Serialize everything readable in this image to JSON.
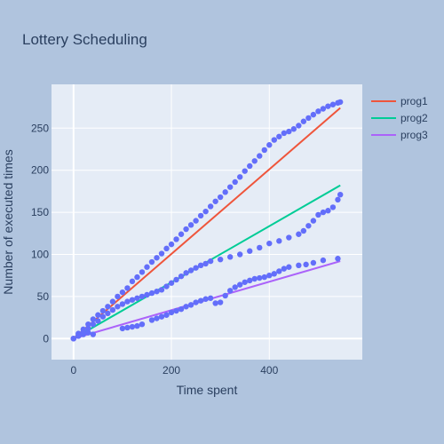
{
  "chart_data": {
    "type": "line",
    "title": "Lottery Scheduling",
    "xlabel": "Time spent",
    "ylabel": "Number of executed times",
    "xlim": [
      -45,
      590
    ],
    "ylim": [
      -25,
      302
    ],
    "x_ticks": [
      0,
      200,
      400
    ],
    "y_ticks": [
      0,
      50,
      100,
      150,
      200,
      250
    ],
    "grid": true,
    "legend_position": "right",
    "colors": {
      "background": "#b0c4de",
      "plot_bg": "#e5ecf6",
      "marker": "#636efa"
    },
    "series": [
      {
        "name": "prog1",
        "color": "#EF553B",
        "x": [
          0,
          545
        ],
        "y": [
          0,
          274
        ]
      },
      {
        "name": "prog2",
        "color": "#00CC96",
        "x": [
          0,
          545
        ],
        "y": [
          0,
          182
        ]
      },
      {
        "name": "prog3",
        "color": "#AB63FA",
        "x": [
          0,
          545
        ],
        "y": [
          0,
          92
        ]
      }
    ],
    "scatter": {
      "name": "observed",
      "color": "#636efa",
      "groups": [
        {
          "x": [
            0,
            10,
            20,
            30,
            40,
            50,
            60,
            70,
            80,
            90,
            100,
            110,
            120,
            130,
            140,
            150,
            160,
            170,
            180,
            190,
            200,
            210,
            220,
            230,
            240,
            250,
            260,
            270,
            280,
            290,
            300,
            310,
            320,
            330,
            340,
            350,
            360,
            370,
            380,
            390,
            400,
            410,
            420,
            430,
            440,
            450,
            460,
            470,
            480,
            490,
            500,
            510,
            520,
            530,
            540,
            545
          ],
          "y": [
            0,
            6,
            11,
            17,
            23,
            28,
            33,
            38,
            44,
            50,
            55,
            60,
            68,
            73,
            79,
            85,
            91,
            96,
            101,
            107,
            112,
            118,
            124,
            130,
            135,
            140,
            146,
            151,
            157,
            163,
            168,
            174,
            180,
            186,
            192,
            199,
            205,
            211,
            217,
            224,
            230,
            236,
            240,
            244,
            246,
            249,
            253,
            258,
            262,
            266,
            270,
            273,
            276,
            278,
            280,
            281
          ]
        },
        {
          "x": [
            0,
            10,
            20,
            30,
            40,
            50,
            60,
            70,
            80,
            90,
            100,
            110,
            120,
            130,
            140,
            150,
            160,
            170,
            180,
            190,
            200,
            210,
            220,
            230,
            240,
            250,
            260,
            270,
            280,
            300,
            320,
            340,
            360,
            380,
            400,
            420,
            440,
            460,
            470,
            480,
            490,
            500,
            510,
            520,
            530,
            540,
            545
          ],
          "y": [
            0,
            4,
            8,
            12,
            17,
            21,
            26,
            30,
            34,
            38,
            41,
            44,
            46,
            48,
            50,
            52,
            54,
            56,
            58,
            62,
            66,
            70,
            74,
            78,
            81,
            84,
            87,
            89,
            92,
            94,
            97,
            100,
            104,
            108,
            113,
            116,
            120,
            124,
            128,
            134,
            140,
            147,
            150,
            152,
            156,
            165,
            171
          ]
        },
        {
          "x": [
            0,
            10,
            20,
            30,
            40,
            100,
            110,
            120,
            130,
            140,
            160,
            170,
            180,
            190,
            200,
            210,
            220,
            230,
            240,
            250,
            260,
            270,
            280,
            290,
            300,
            310,
            320,
            330,
            340,
            350,
            360,
            370,
            380,
            390,
            400,
            410,
            420,
            430,
            440,
            460,
            475,
            490,
            510,
            540
          ],
          "y": [
            0,
            3,
            5,
            7,
            5,
            12,
            13,
            14,
            15,
            17,
            22,
            24,
            26,
            28,
            31,
            33,
            35,
            38,
            40,
            43,
            45,
            47,
            48,
            42,
            43,
            51,
            57,
            61,
            64,
            67,
            69,
            71,
            72,
            73,
            75,
            77,
            80,
            83,
            85,
            87,
            88,
            90,
            93,
            95
          ]
        }
      ]
    }
  }
}
